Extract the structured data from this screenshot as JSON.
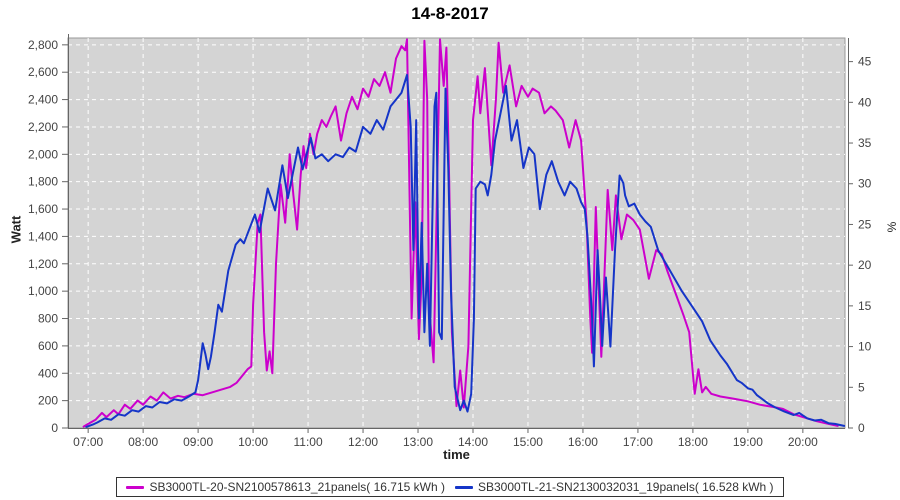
{
  "chart_data": {
    "type": "line",
    "title": "14-8-2017",
    "xlabel": "time",
    "ylabel_left": "Watt",
    "ylabel_right": "%",
    "plot_bg_color": "#d4d4d4",
    "grid_color": "#ffffff",
    "axis_color": "#666666",
    "tick_text_color": "#444444",
    "x_domain_minutes": [
      398,
      1246
    ],
    "y_left_range": [
      0,
      2850
    ],
    "y_right_max_pct": 47.9,
    "x_ticks": [
      {
        "minutes": 420,
        "label": "07:00"
      },
      {
        "minutes": 480,
        "label": "08:00"
      },
      {
        "minutes": 540,
        "label": "09:00"
      },
      {
        "minutes": 600,
        "label": "10:00"
      },
      {
        "minutes": 660,
        "label": "11:00"
      },
      {
        "minutes": 720,
        "label": "12:00"
      },
      {
        "minutes": 780,
        "label": "13:00"
      },
      {
        "minutes": 840,
        "label": "14:00"
      },
      {
        "minutes": 900,
        "label": "15:00"
      },
      {
        "minutes": 960,
        "label": "16:00"
      },
      {
        "minutes": 1020,
        "label": "17:00"
      },
      {
        "minutes": 1080,
        "label": "18:00"
      },
      {
        "minutes": 1140,
        "label": "19:00"
      },
      {
        "minutes": 1200,
        "label": "20:00"
      }
    ],
    "y_left_ticks": [
      {
        "v": 0,
        "label": "0"
      },
      {
        "v": 200,
        "label": "200"
      },
      {
        "v": 400,
        "label": "400"
      },
      {
        "v": 600,
        "label": "600"
      },
      {
        "v": 800,
        "label": "800"
      },
      {
        "v": 1000,
        "label": "1,000"
      },
      {
        "v": 1200,
        "label": "1,200"
      },
      {
        "v": 1400,
        "label": "1,400"
      },
      {
        "v": 1600,
        "label": "1,600"
      },
      {
        "v": 1800,
        "label": "1,800"
      },
      {
        "v": 2000,
        "label": "2,000"
      },
      {
        "v": 2200,
        "label": "2,200"
      },
      {
        "v": 2400,
        "label": "2,400"
      },
      {
        "v": 2600,
        "label": "2,600"
      },
      {
        "v": 2800,
        "label": "2,800"
      }
    ],
    "y_right_ticks": [
      {
        "v": 0,
        "label": "0"
      },
      {
        "v": 5,
        "label": "5"
      },
      {
        "v": 10,
        "label": "10"
      },
      {
        "v": 15,
        "label": "15"
      },
      {
        "v": 20,
        "label": "20"
      },
      {
        "v": 25,
        "label": "25"
      },
      {
        "v": 30,
        "label": "30"
      },
      {
        "v": 35,
        "label": "35"
      },
      {
        "v": 40,
        "label": "40"
      },
      {
        "v": 45,
        "label": "45"
      }
    ],
    "series": [
      {
        "name": "SB3000TL-20-SN2100578613_21panels( 16.715 kWh )",
        "color": "#CC00CC",
        "points": [
          [
            415,
            10
          ],
          [
            420,
            30
          ],
          [
            428,
            60
          ],
          [
            435,
            110
          ],
          [
            440,
            80
          ],
          [
            448,
            130
          ],
          [
            453,
            100
          ],
          [
            460,
            170
          ],
          [
            466,
            140
          ],
          [
            474,
            200
          ],
          [
            480,
            170
          ],
          [
            488,
            230
          ],
          [
            495,
            200
          ],
          [
            502,
            260
          ],
          [
            510,
            215
          ],
          [
            518,
            235
          ],
          [
            525,
            225
          ],
          [
            535,
            250
          ],
          [
            545,
            240
          ],
          [
            555,
            260
          ],
          [
            565,
            280
          ],
          [
            575,
            300
          ],
          [
            582,
            330
          ],
          [
            588,
            380
          ],
          [
            594,
            430
          ],
          [
            598,
            450
          ],
          [
            600,
            900
          ],
          [
            605,
            1500
          ],
          [
            608,
            1560
          ],
          [
            612,
            700
          ],
          [
            615,
            420
          ],
          [
            618,
            560
          ],
          [
            621,
            400
          ],
          [
            625,
            1200
          ],
          [
            630,
            1780
          ],
          [
            635,
            1500
          ],
          [
            640,
            2000
          ],
          [
            644,
            1700
          ],
          [
            648,
            1450
          ],
          [
            652,
            1850
          ],
          [
            655,
            2060
          ],
          [
            658,
            1900
          ],
          [
            662,
            2150
          ],
          [
            666,
            2000
          ],
          [
            670,
            2150
          ],
          [
            675,
            2250
          ],
          [
            680,
            2200
          ],
          [
            685,
            2280
          ],
          [
            690,
            2350
          ],
          [
            696,
            2100
          ],
          [
            702,
            2300
          ],
          [
            708,
            2420
          ],
          [
            714,
            2330
          ],
          [
            720,
            2480
          ],
          [
            726,
            2420
          ],
          [
            732,
            2550
          ],
          [
            738,
            2500
          ],
          [
            744,
            2600
          ],
          [
            750,
            2450
          ],
          [
            756,
            2700
          ],
          [
            762,
            2790
          ],
          [
            766,
            2760
          ],
          [
            768,
            2840
          ],
          [
            771,
            1600
          ],
          [
            773,
            800
          ],
          [
            777,
            1650
          ],
          [
            781,
            650
          ],
          [
            784,
            1100
          ],
          [
            787,
            2830
          ],
          [
            790,
            2400
          ],
          [
            792,
            900
          ],
          [
            797,
            480
          ],
          [
            800,
            1450
          ],
          [
            804,
            2840
          ],
          [
            808,
            2500
          ],
          [
            811,
            2780
          ],
          [
            814,
            1800
          ],
          [
            817,
            700
          ],
          [
            822,
            160
          ],
          [
            826,
            420
          ],
          [
            830,
            150
          ],
          [
            835,
            600
          ],
          [
            840,
            2250
          ],
          [
            845,
            2570
          ],
          [
            848,
            2300
          ],
          [
            853,
            2630
          ],
          [
            860,
            1920
          ],
          [
            865,
            2400
          ],
          [
            868,
            2815
          ],
          [
            873,
            2450
          ],
          [
            880,
            2650
          ],
          [
            887,
            2350
          ],
          [
            893,
            2500
          ],
          [
            900,
            2420
          ],
          [
            905,
            2480
          ],
          [
            912,
            2450
          ],
          [
            918,
            2300
          ],
          [
            925,
            2350
          ],
          [
            930,
            2320
          ],
          [
            938,
            2250
          ],
          [
            945,
            2050
          ],
          [
            952,
            2250
          ],
          [
            958,
            2100
          ],
          [
            964,
            1500
          ],
          [
            968,
            800
          ],
          [
            970,
            550
          ],
          [
            974,
            1615
          ],
          [
            980,
            520
          ],
          [
            987,
            1740
          ],
          [
            992,
            1300
          ],
          [
            996,
            1700
          ],
          [
            1002,
            1380
          ],
          [
            1008,
            1560
          ],
          [
            1015,
            1520
          ],
          [
            1022,
            1450
          ],
          [
            1032,
            1090
          ],
          [
            1040,
            1300
          ],
          [
            1046,
            1270
          ],
          [
            1052,
            1150
          ],
          [
            1063,
            950
          ],
          [
            1070,
            820
          ],
          [
            1076,
            700
          ],
          [
            1082,
            250
          ],
          [
            1086,
            430
          ],
          [
            1090,
            260
          ],
          [
            1094,
            300
          ],
          [
            1100,
            250
          ],
          [
            1110,
            230
          ],
          [
            1124,
            215
          ],
          [
            1140,
            195
          ],
          [
            1153,
            170
          ],
          [
            1171,
            150
          ],
          [
            1178,
            140
          ],
          [
            1190,
            100
          ],
          [
            1200,
            80
          ],
          [
            1215,
            50
          ],
          [
            1228,
            30
          ],
          [
            1238,
            15
          ]
        ]
      },
      {
        "name": "SB3000TL-21-SN2130032031_19panels( 16.528 kWh )",
        "color": "#1535C8",
        "points": [
          [
            418,
            8
          ],
          [
            425,
            25
          ],
          [
            430,
            40
          ],
          [
            438,
            70
          ],
          [
            445,
            60
          ],
          [
            453,
            100
          ],
          [
            460,
            90
          ],
          [
            468,
            130
          ],
          [
            475,
            120
          ],
          [
            483,
            160
          ],
          [
            490,
            150
          ],
          [
            498,
            190
          ],
          [
            506,
            180
          ],
          [
            514,
            210
          ],
          [
            522,
            200
          ],
          [
            530,
            230
          ],
          [
            537,
            260
          ],
          [
            540,
            350
          ],
          [
            545,
            620
          ],
          [
            548,
            540
          ],
          [
            551,
            430
          ],
          [
            554,
            520
          ],
          [
            558,
            700
          ],
          [
            562,
            900
          ],
          [
            566,
            850
          ],
          [
            573,
            1150
          ],
          [
            581,
            1340
          ],
          [
            586,
            1380
          ],
          [
            590,
            1350
          ],
          [
            602,
            1560
          ],
          [
            607,
            1430
          ],
          [
            616,
            1750
          ],
          [
            624,
            1590
          ],
          [
            632,
            1920
          ],
          [
            638,
            1680
          ],
          [
            649,
            2050
          ],
          [
            654,
            1890
          ],
          [
            663,
            2120
          ],
          [
            668,
            1970
          ],
          [
            675,
            2000
          ],
          [
            682,
            1950
          ],
          [
            690,
            2000
          ],
          [
            698,
            1980
          ],
          [
            705,
            2050
          ],
          [
            712,
            2020
          ],
          [
            720,
            2200
          ],
          [
            728,
            2150
          ],
          [
            735,
            2250
          ],
          [
            742,
            2180
          ],
          [
            750,
            2350
          ],
          [
            756,
            2400
          ],
          [
            762,
            2450
          ],
          [
            768,
            2580
          ],
          [
            772,
            2200
          ],
          [
            775,
            1300
          ],
          [
            778,
            2250
          ],
          [
            781,
            800
          ],
          [
            784,
            1500
          ],
          [
            787,
            700
          ],
          [
            790,
            1200
          ],
          [
            793,
            600
          ],
          [
            798,
            2350
          ],
          [
            800,
            2450
          ],
          [
            803,
            700
          ],
          [
            806,
            650
          ],
          [
            810,
            2480
          ],
          [
            813,
            1900
          ],
          [
            816,
            1000
          ],
          [
            820,
            300
          ],
          [
            826,
            130
          ],
          [
            830,
            200
          ],
          [
            834,
            120
          ],
          [
            838,
            250
          ],
          [
            841,
            800
          ],
          [
            843,
            1750
          ],
          [
            848,
            1800
          ],
          [
            853,
            1780
          ],
          [
            856,
            1700
          ],
          [
            860,
            1850
          ],
          [
            864,
            2100
          ],
          [
            870,
            2300
          ],
          [
            876,
            2500
          ],
          [
            882,
            2100
          ],
          [
            888,
            2250
          ],
          [
            895,
            1900
          ],
          [
            901,
            2050
          ],
          [
            907,
            2000
          ],
          [
            913,
            1600
          ],
          [
            920,
            1850
          ],
          [
            926,
            1950
          ],
          [
            933,
            1800
          ],
          [
            940,
            1700
          ],
          [
            946,
            1800
          ],
          [
            953,
            1750
          ],
          [
            958,
            1650
          ],
          [
            962,
            1600
          ],
          [
            965,
            1400
          ],
          [
            970,
            800
          ],
          [
            972,
            450
          ],
          [
            976,
            1300
          ],
          [
            979,
            900
          ],
          [
            981,
            600
          ],
          [
            985,
            1100
          ],
          [
            988,
            800
          ],
          [
            990,
            595
          ],
          [
            995,
            1300
          ],
          [
            1000,
            1845
          ],
          [
            1004,
            1790
          ],
          [
            1006,
            1700
          ],
          [
            1010,
            1620
          ],
          [
            1016,
            1640
          ],
          [
            1022,
            1560
          ],
          [
            1028,
            1510
          ],
          [
            1034,
            1470
          ],
          [
            1042,
            1300
          ],
          [
            1055,
            1150
          ],
          [
            1068,
            1000
          ],
          [
            1080,
            880
          ],
          [
            1090,
            780
          ],
          [
            1099,
            640
          ],
          [
            1110,
            530
          ],
          [
            1117,
            470
          ],
          [
            1128,
            350
          ],
          [
            1133,
            330
          ],
          [
            1140,
            290
          ],
          [
            1145,
            280
          ],
          [
            1150,
            240
          ],
          [
            1162,
            180
          ],
          [
            1170,
            150
          ],
          [
            1180,
            120
          ],
          [
            1190,
            95
          ],
          [
            1196,
            110
          ],
          [
            1205,
            70
          ],
          [
            1213,
            55
          ],
          [
            1220,
            60
          ],
          [
            1228,
            35
          ],
          [
            1235,
            30
          ],
          [
            1245,
            15
          ]
        ]
      }
    ]
  }
}
